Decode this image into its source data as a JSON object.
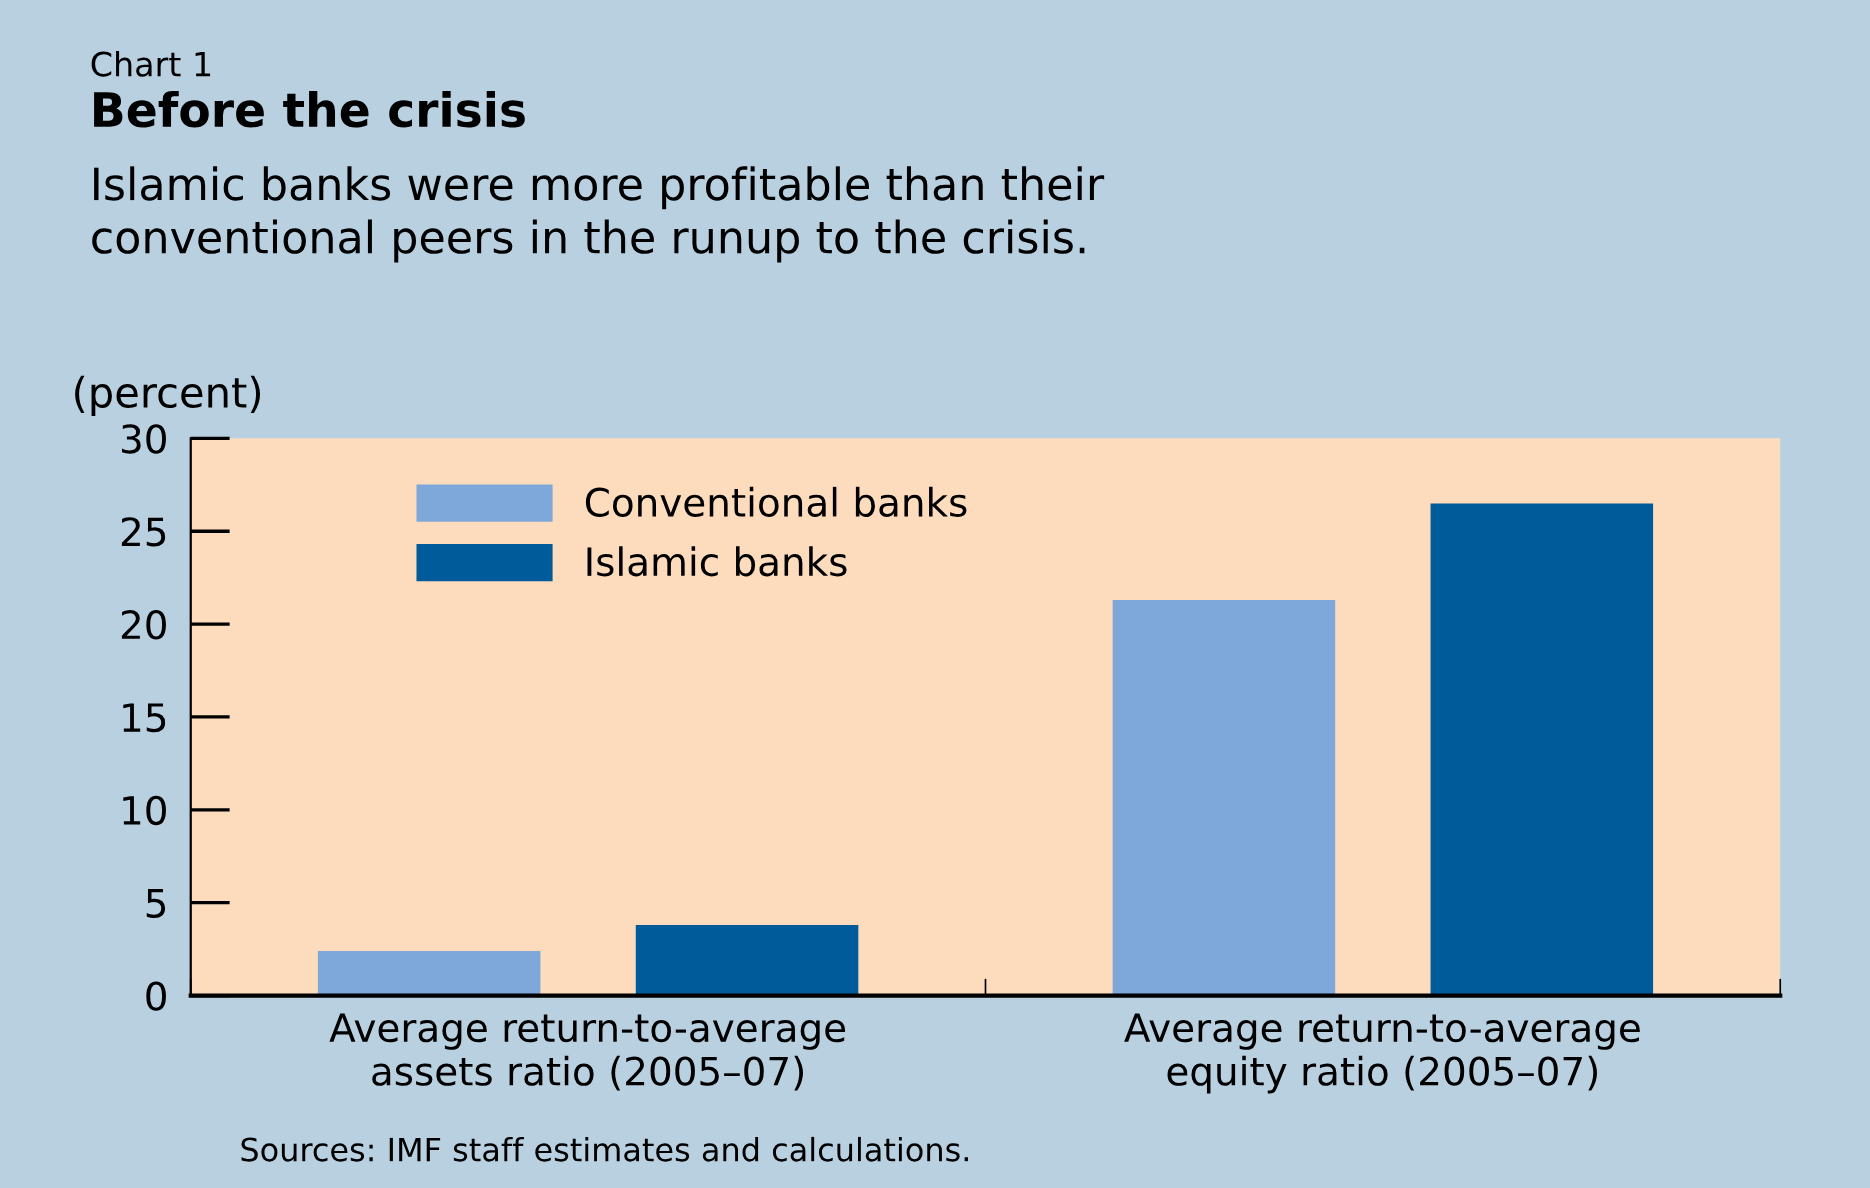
{
  "chart_data": {
    "type": "bar",
    "title": "Before the crisis",
    "subtitle": "Islamic banks were more profitable than their\nconventional peers in the runup to the crisis.",
    "ylabel": "(percent)",
    "categories": [
      "Average return-to-average\nassets ratio (2005–07)",
      "Average return-to-average\nequity ratio (2005–07)"
    ],
    "series": [
      {
        "name": "Conventional banks",
        "color": "#7ea7da",
        "values": [
          2.4,
          21.3
        ]
      },
      {
        "name": "Islamic banks",
        "color": "#005b9a",
        "values": [
          3.8,
          26.5
        ]
      }
    ],
    "ylim": [
      0,
      30
    ],
    "yticks": [
      0,
      5,
      10,
      15,
      20,
      25,
      30
    ],
    "grid": false,
    "legend": "top left",
    "annotations": [
      "Chart 1",
      "Sources: IMF staff estimates and calculations."
    ]
  }
}
